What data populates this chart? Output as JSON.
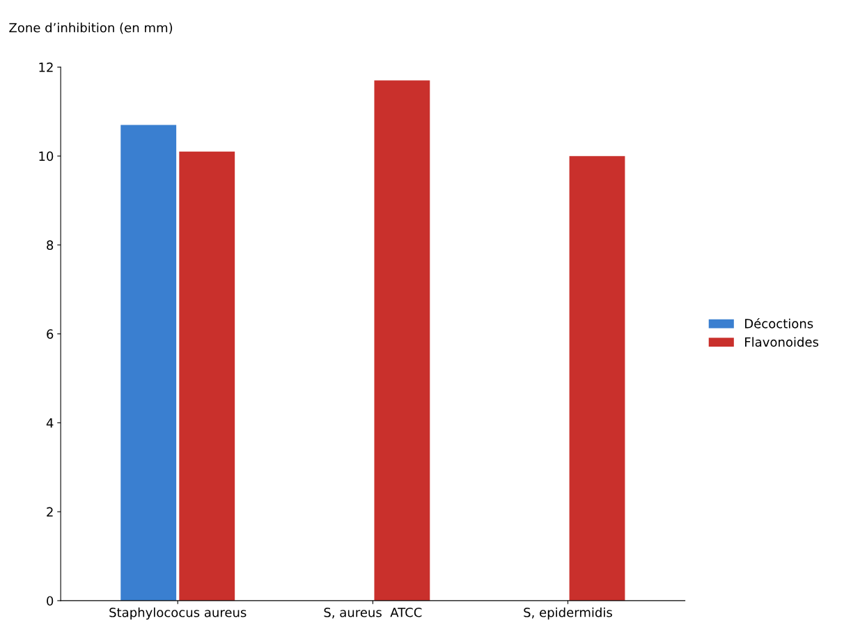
{
  "chart_data": {
    "type": "bar",
    "ylabel": "Zone d’inhibition (en mm)",
    "categories": [
      "Staphylococus aureus",
      "S, aureus  ATCC",
      "S, epidermidis"
    ],
    "series": [
      {
        "name": "Décoctions",
        "color": "#3a7fd0",
        "values": [
          10.7,
          0,
          0
        ]
      },
      {
        "name": "Flavonoides",
        "color": "#c9302c",
        "values": [
          10.1,
          11.7,
          10.0
        ]
      }
    ],
    "ylim": [
      0,
      12
    ],
    "yticks": [
      0,
      2,
      4,
      6,
      8,
      10,
      12
    ],
    "grid": false,
    "legend": "right"
  }
}
